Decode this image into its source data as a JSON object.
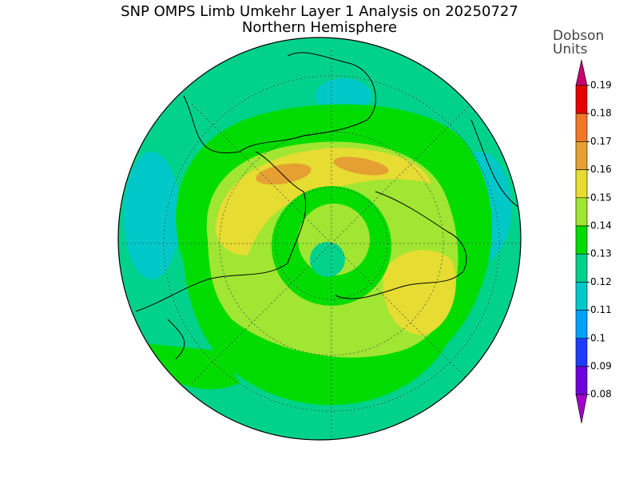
{
  "header": {
    "title": "SNP OMPS Limb Umkehr Layer 1 Analysis on 20250727",
    "subtitle": "Northern Hemisphere"
  },
  "colorbar": {
    "label": [
      "Dobson",
      "Units"
    ],
    "ticks": [
      "0.19",
      "0.18",
      "0.17",
      "0.16",
      "0.15",
      "0.14",
      "0.13",
      "0.12",
      "0.11",
      "0.1",
      "0.09",
      "0.08"
    ],
    "colors": [
      "#c8006e",
      "#e60000",
      "#f07828",
      "#e6a032",
      "#e6dc32",
      "#a0e632",
      "#00dc00",
      "#00d28c",
      "#00c8c8",
      "#00a0ff",
      "#1e3cff",
      "#6e00dc",
      "#a000c8"
    ]
  }
}
